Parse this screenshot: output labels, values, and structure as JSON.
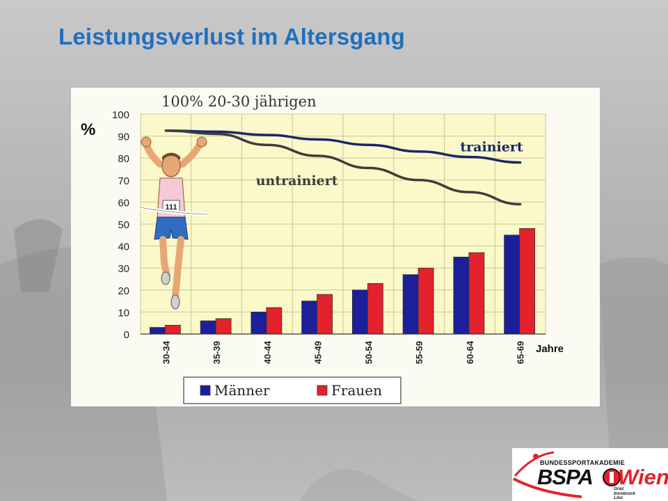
{
  "slide": {
    "title": "Leistungsverlust im Altersgang"
  },
  "chart_data": {
    "type": "bar",
    "title": "100% 20-30 jährigen",
    "ylabel": "%",
    "xlabel": "Jahre",
    "ylim": [
      0,
      100
    ],
    "yticks": [
      0,
      10,
      20,
      30,
      40,
      50,
      60,
      70,
      80,
      90,
      100
    ],
    "categories": [
      "30-34",
      "35-39",
      "40-44",
      "45-49",
      "50-54",
      "55-59",
      "60-64",
      "65-69"
    ],
    "series": [
      {
        "name": "Männer",
        "color": "#1c1f9a",
        "values": [
          3,
          6,
          10,
          15,
          20,
          27,
          35,
          45
        ]
      },
      {
        "name": "Frauen",
        "color": "#e3222b",
        "values": [
          4,
          7,
          12,
          18,
          23,
          30,
          37,
          48
        ]
      }
    ],
    "lines": [
      {
        "name": "trainiert",
        "color": "#17276b",
        "values": [
          92.5,
          92,
          90.5,
          88.5,
          86,
          83,
          80.5,
          78
        ]
      },
      {
        "name": "untrainiert",
        "color": "#3d3d3d",
        "values": [
          92.5,
          91,
          86,
          81,
          75.5,
          70,
          64.5,
          59
        ]
      }
    ],
    "grid": true,
    "legend_position": "bottom"
  },
  "logo": {
    "top_text": "BUNDESSPORTAKADEMIE",
    "main_text": "BSPA",
    "city_text": "Wien",
    "sub_cities": [
      "Graz",
      "Innsbruck",
      "Linz"
    ],
    "colors": {
      "accent": "#e3222b",
      "text": "#111111"
    }
  }
}
